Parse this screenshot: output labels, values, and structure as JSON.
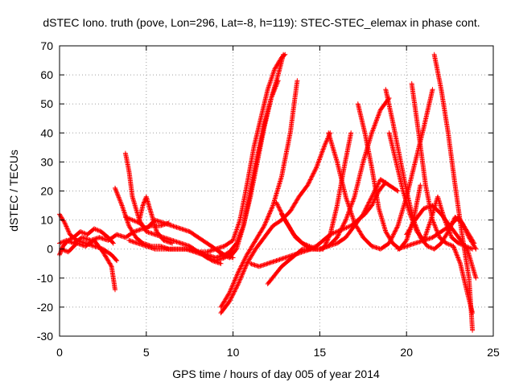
{
  "chart_data": {
    "type": "scatter",
    "title": "dSTEC Iono. truth (pove, Lon=296, Lat=-8, h=119): STEC-STEC_elemax in phase cont.",
    "xlabel": "GPS time / hours of day 005 of year 2014",
    "ylabel": "dSTEC  / TECUs",
    "xlim": [
      0,
      25
    ],
    "ylim": [
      -30,
      70
    ],
    "xticks": [
      0,
      5,
      10,
      15,
      20,
      25
    ],
    "yticks": [
      -30,
      -20,
      -10,
      0,
      10,
      20,
      30,
      40,
      50,
      60,
      70
    ],
    "grid": true,
    "marker": "+",
    "color": "#ff0000",
    "series": [
      {
        "x": [
          0.0,
          0.3,
          0.6,
          1.0,
          1.5,
          2.0,
          2.5,
          3.0,
          3.3
        ],
        "y": [
          12,
          9,
          5,
          3,
          2,
          1,
          0,
          -2,
          -4
        ]
      },
      {
        "x": [
          0.0,
          0.2,
          0.5,
          0.8,
          1.2,
          1.6,
          2.0,
          2.4,
          2.8,
          3.1
        ],
        "y": [
          -2,
          1,
          3,
          4,
          6,
          5,
          7,
          6,
          4,
          2
        ]
      },
      {
        "x": [
          0.1,
          0.5,
          1.0,
          1.5,
          2.0,
          2.5,
          3.0,
          3.2
        ],
        "y": [
          0,
          -1,
          2,
          1,
          3,
          -1,
          -6,
          -14
        ]
      },
      {
        "x": [
          0.0,
          0.4,
          0.8,
          1.3,
          1.8,
          2.3,
          2.8,
          3.3,
          3.8,
          4.3,
          4.8,
          5.3,
          5.8,
          6.3
        ],
        "y": [
          2,
          3,
          2,
          4,
          3,
          4,
          3,
          5,
          4,
          6,
          7,
          8,
          8,
          9
        ]
      },
      {
        "x": [
          3.2,
          3.6,
          4.0,
          4.4,
          4.8,
          5.3,
          5.8,
          6.3,
          6.8,
          7.3,
          7.8,
          8.3,
          8.8,
          9.3
        ],
        "y": [
          21,
          15,
          8,
          4,
          2,
          1,
          1,
          0,
          0,
          0,
          -1,
          -2,
          -4,
          -5
        ]
      },
      {
        "x": [
          3.8,
          4.0,
          4.2,
          4.6,
          5.0,
          5.5,
          6.0,
          6.5,
          7.0,
          7.5,
          8.0,
          8.5,
          9.0,
          9.5,
          10.0
        ],
        "y": [
          33,
          27,
          18,
          10,
          6,
          5,
          4,
          3,
          2,
          1,
          -1,
          -3,
          -4,
          -3,
          -1
        ]
      },
      {
        "x": [
          3.8,
          4.2,
          4.6,
          5.0,
          5.5,
          6.0,
          6.5,
          7.0,
          7.5,
          8.0,
          8.5,
          9.0,
          9.5,
          10.0
        ],
        "y": [
          11,
          10,
          9,
          7,
          10,
          9,
          8,
          7,
          6,
          4,
          2,
          0,
          -2,
          -3
        ]
      },
      {
        "x": [
          4.6,
          4.8,
          5.0,
          5.3,
          5.6,
          6.0,
          6.5
        ],
        "y": [
          10,
          15,
          18,
          12,
          6,
          3,
          2
        ]
      },
      {
        "x": [
          4.0,
          4.5,
          5.0,
          5.5,
          6.0,
          6.5,
          7.0,
          7.5,
          8.0,
          8.5,
          9.0,
          9.5,
          10.0,
          10.4,
          10.8,
          11.2,
          11.6,
          12.0,
          12.4,
          12.8,
          13.0
        ],
        "y": [
          3,
          2,
          1,
          0,
          0,
          0,
          0,
          0,
          -1,
          -1,
          0,
          1,
          3,
          10,
          22,
          35,
          45,
          55,
          62,
          66,
          67
        ]
      },
      {
        "x": [
          7.5,
          8.0,
          8.5,
          9.0,
          9.5,
          9.8,
          10.2,
          10.6,
          11.0,
          11.4,
          11.8,
          12.2,
          12.6,
          12.9
        ],
        "y": [
          0,
          -1,
          -2,
          -3,
          -2,
          -1,
          2,
          8,
          18,
          30,
          42,
          52,
          60,
          67
        ]
      },
      {
        "x": [
          9.0,
          9.4,
          9.8,
          10.2,
          10.6,
          11.0,
          11.4,
          11.8,
          12.2,
          12.6
        ],
        "y": [
          0,
          -2,
          -3,
          0,
          8,
          20,
          32,
          43,
          52,
          58
        ]
      },
      {
        "x": [
          9.3,
          9.8,
          10.3,
          10.8,
          11.3,
          11.8,
          12.3,
          12.8,
          13.3,
          13.7
        ],
        "y": [
          -20,
          -15,
          -8,
          -2,
          3,
          8,
          15,
          25,
          40,
          58
        ]
      },
      {
        "x": [
          9.3,
          9.8,
          10.3,
          10.8,
          11.3,
          11.8,
          12.3,
          12.8,
          13.3,
          13.8,
          14.3,
          14.8,
          15.3,
          15.6
        ],
        "y": [
          -22,
          -18,
          -12,
          -5,
          0,
          4,
          8,
          10,
          13,
          18,
          22,
          28,
          36,
          40
        ]
      },
      {
        "x": [
          12.0,
          12.4,
          12.8,
          13.2,
          13.6,
          14.0,
          14.4,
          14.8,
          15.2,
          15.6,
          16.0,
          16.4,
          16.8,
          17.2,
          17.6,
          18.0,
          18.4,
          18.8
        ],
        "y": [
          -12,
          -9,
          -6,
          -4,
          -2,
          0,
          0,
          1,
          3,
          5,
          6,
          7,
          8,
          10,
          12,
          15,
          20,
          23
        ]
      },
      {
        "x": [
          11.0,
          11.5,
          12.0,
          12.5,
          13.0,
          13.5,
          14.0,
          14.5,
          15.0,
          15.5,
          16.0,
          16.5,
          17.0,
          17.5,
          18.0,
          18.5,
          19.0,
          19.5
        ],
        "y": [
          -5,
          -6,
          -5,
          -4,
          -3,
          -2,
          -1,
          0,
          0,
          1,
          2,
          4,
          8,
          12,
          18,
          24,
          22,
          20
        ]
      },
      {
        "x": [
          12.8,
          13.2,
          13.6,
          14.0,
          14.4,
          14.8,
          15.2,
          15.6,
          16.0,
          16.4,
          16.8
        ],
        "y": [
          12,
          8,
          4,
          2,
          1,
          0,
          0,
          5,
          15,
          28,
          40
        ]
      },
      {
        "x": [
          12.5,
          13.0,
          13.5,
          14.0,
          14.5,
          15.0,
          15.5,
          16.0,
          16.5,
          17.0,
          17.5,
          18.0,
          18.5,
          19.0
        ],
        "y": [
          16,
          10,
          5,
          2,
          0,
          0,
          1,
          4,
          10,
          18,
          30,
          40,
          48,
          52
        ]
      },
      {
        "x": [
          15.5,
          16.0,
          16.5,
          17.0,
          17.5,
          18.0,
          18.5,
          19.0,
          19.5,
          20.0,
          20.5,
          21.0,
          21.5
        ],
        "y": [
          40,
          30,
          18,
          9,
          4,
          1,
          0,
          2,
          8,
          18,
          30,
          42,
          55
        ]
      },
      {
        "x": [
          17.2,
          17.6,
          18.0,
          18.4,
          18.8,
          19.2,
          19.6,
          20.0,
          20.4,
          20.8
        ],
        "y": [
          50,
          40,
          28,
          14,
          6,
          2,
          0,
          3,
          10,
          22
        ]
      },
      {
        "x": [
          18.8,
          19.2,
          19.6,
          20.0,
          20.4,
          20.8,
          21.2,
          21.6,
          22.0,
          22.4,
          22.8,
          23.2,
          23.6,
          24.0
        ],
        "y": [
          55,
          44,
          32,
          20,
          10,
          4,
          1,
          0,
          2,
          6,
          11,
          9,
          4,
          0
        ]
      },
      {
        "x": [
          19.0,
          19.4,
          19.8,
          20.2,
          20.6,
          21.0,
          21.4,
          21.8,
          22.2,
          22.6,
          23.0,
          23.4,
          23.8
        ],
        "y": [
          40,
          30,
          20,
          12,
          6,
          3,
          10,
          18,
          10,
          4,
          2,
          1,
          0
        ]
      },
      {
        "x": [
          20.3,
          20.7,
          21.1,
          21.5,
          21.9,
          22.3,
          22.7,
          23.1,
          23.5,
          23.8
        ],
        "y": [
          57,
          40,
          22,
          10,
          4,
          2,
          1,
          -5,
          -15,
          -22
        ]
      },
      {
        "x": [
          21.6,
          22.0,
          22.4,
          22.8,
          23.2,
          23.6,
          23.8
        ],
        "y": [
          67,
          55,
          40,
          22,
          5,
          -10,
          -28
        ]
      },
      {
        "x": [
          20.0,
          20.5,
          21.0,
          21.5,
          22.0,
          22.5,
          23.0,
          23.5,
          24.0
        ],
        "y": [
          5,
          10,
          14,
          15,
          12,
          8,
          4,
          0,
          -10
        ]
      },
      {
        "x": [
          19.5,
          20.0,
          20.5,
          21.0,
          21.5,
          22.0,
          22.5,
          23.0,
          23.5,
          23.9
        ],
        "y": [
          0,
          1,
          2,
          3,
          4,
          6,
          8,
          11,
          6,
          2
        ]
      }
    ]
  }
}
